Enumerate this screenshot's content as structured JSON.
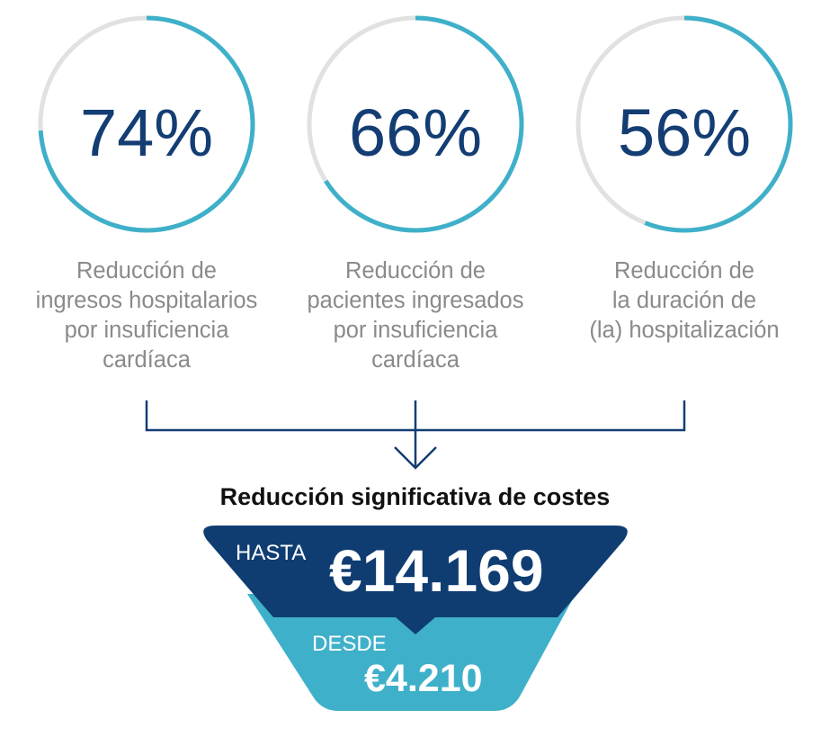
{
  "colors": {
    "ring_track": "#e1e1e1",
    "ring_progress": "#3fb0c9",
    "value_text": "#133d73",
    "caption_text": "#8a8a8a",
    "connector": "#133d73",
    "funnel_top": "#0f3d72",
    "funnel_bottom": "#3fb0c9"
  },
  "stats": [
    {
      "value": "74%",
      "fraction": 0.74,
      "caption_lines": [
        "Reducción de",
        "ingresos hospitalarios",
        "por insuficiencia",
        "cardíaca"
      ]
    },
    {
      "value": "66%",
      "fraction": 0.66,
      "caption_lines": [
        "Reducción de",
        "pacientes ingresados",
        "por insuficiencia",
        "cardíaca"
      ]
    },
    {
      "value": "56%",
      "fraction": 0.56,
      "caption_lines": [
        "Reducción de",
        "la duración de",
        "(la) hospitalización"
      ]
    }
  ],
  "savings": {
    "title": "Reducción significativa de costes",
    "upper_label": "HASTA",
    "upper_value": "€14.169",
    "lower_label": "DESDE",
    "lower_value": "€4.210"
  }
}
